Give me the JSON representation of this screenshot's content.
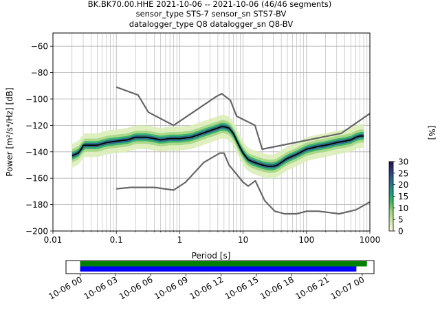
{
  "chart_data": [
    {
      "type": "heatmap",
      "title_lines": [
        "BK.BK70.00.HHE   2021-10-06 -- 2021-10-06  (46/46 segments)",
        "sensor_type STS-7 sensor_sn STS7-BV",
        "datalogger_type Q8 datalogger_sn Q8-BV"
      ],
      "xlabel": "Period [s]",
      "ylabel": "Power [m²/s⁴/Hz] [dB]",
      "xscale": "log",
      "xlim": [
        0.01,
        1000
      ],
      "ylim": [
        -200,
        -50
      ],
      "grid": true,
      "x_ticks": [
        0.01,
        0.1,
        1,
        10,
        100,
        1000
      ],
      "x_tick_labels": [
        "0.01",
        "0.1",
        "1",
        "10",
        "100",
        "1000"
      ],
      "y_ticks": [
        -200,
        -180,
        -160,
        -140,
        -120,
        -100,
        -80,
        -60
      ],
      "y_tick_labels": [
        "−200",
        "−180",
        "−160",
        "−140",
        "−120",
        "−100",
        "−80",
        "−60"
      ],
      "colorbar": {
        "label": "[%]",
        "range": [
          0,
          30
        ],
        "ticks": [
          0,
          5,
          10,
          15,
          20,
          25,
          30
        ],
        "tick_labels": [
          "0",
          "5",
          "10",
          "15",
          "20",
          "25",
          "30"
        ]
      },
      "noise_models": {
        "new_high_noise_model": [
          [
            0.1,
            -91
          ],
          [
            0.22,
            -97
          ],
          [
            0.32,
            -110
          ],
          [
            0.8,
            -120
          ],
          [
            3.8,
            -98
          ],
          [
            4.6,
            -96
          ],
          [
            6.3,
            -101
          ],
          [
            7.9,
            -113
          ],
          [
            15.4,
            -120
          ],
          [
            20,
            -138
          ],
          [
            354,
            -126
          ],
          [
            1000,
            -111
          ]
        ],
        "new_low_noise_model": [
          [
            0.1,
            -168
          ],
          [
            0.17,
            -167
          ],
          [
            0.4,
            -167
          ],
          [
            0.8,
            -169
          ],
          [
            1.24,
            -163
          ],
          [
            2.4,
            -148
          ],
          [
            4.3,
            -141
          ],
          [
            5,
            -141
          ],
          [
            6,
            -150
          ],
          [
            10,
            -163
          ],
          [
            12,
            -166
          ],
          [
            15.6,
            -162
          ],
          [
            21.9,
            -177
          ],
          [
            31.6,
            -185
          ],
          [
            45,
            -187
          ],
          [
            70,
            -187
          ],
          [
            101,
            -185
          ],
          [
            154,
            -185
          ],
          [
            328,
            -187
          ],
          [
            600,
            -184
          ],
          [
            1000,
            -178
          ]
        ]
      },
      "mode_curve": [
        [
          0.02,
          -143
        ],
        [
          0.025,
          -141
        ],
        [
          0.028,
          -138
        ],
        [
          0.03,
          -135
        ],
        [
          0.04,
          -135
        ],
        [
          0.05,
          -135
        ],
        [
          0.07,
          -133
        ],
        [
          0.1,
          -132
        ],
        [
          0.15,
          -131
        ],
        [
          0.2,
          -129
        ],
        [
          0.3,
          -129
        ],
        [
          0.4,
          -130
        ],
        [
          0.5,
          -131
        ],
        [
          0.7,
          -130
        ],
        [
          1,
          -130
        ],
        [
          1.5,
          -129
        ],
        [
          2,
          -127
        ],
        [
          3,
          -124
        ],
        [
          4,
          -122
        ],
        [
          4.5,
          -121
        ],
        [
          5,
          -121
        ],
        [
          6,
          -122
        ],
        [
          7,
          -126
        ],
        [
          8,
          -132
        ],
        [
          9,
          -137
        ],
        [
          10,
          -141
        ],
        [
          12,
          -146
        ],
        [
          15,
          -148
        ],
        [
          20,
          -150
        ],
        [
          25,
          -151
        ],
        [
          30,
          -151
        ],
        [
          35,
          -150
        ],
        [
          40,
          -148
        ],
        [
          50,
          -145
        ],
        [
          70,
          -142
        ],
        [
          100,
          -138
        ],
        [
          150,
          -136
        ],
        [
          200,
          -135
        ],
        [
          300,
          -133
        ],
        [
          400,
          -132
        ],
        [
          500,
          -131
        ],
        [
          600,
          -129
        ],
        [
          700,
          -128
        ],
        [
          800,
          -128
        ]
      ],
      "density_bands": [
        {
          "percent": 3,
          "half_width_db": 9
        },
        {
          "percent": 8,
          "half_width_db": 5
        },
        {
          "percent": 14,
          "half_width_db": 3
        },
        {
          "percent": 22,
          "half_width_db": 1.6
        }
      ]
    },
    {
      "type": "bar",
      "title": "",
      "x_tick_labels": [
        "10-06 00",
        "10-06 03",
        "10-06 06",
        "10-06 09",
        "10-06 12",
        "10-06 15",
        "10-06 18",
        "10-06 21",
        "10-07 00"
      ],
      "x_tick_hours": [
        0,
        3,
        6,
        9,
        12,
        15,
        18,
        21,
        24
      ],
      "xlim_hours": [
        -1.2,
        25.0
      ],
      "series": [
        {
          "color": "#008000",
          "start_hour": 0.0,
          "end_hour": 24.4
        },
        {
          "color": "#0000ff",
          "start_hour": 0.0,
          "end_hour": 23.5
        }
      ]
    }
  ]
}
